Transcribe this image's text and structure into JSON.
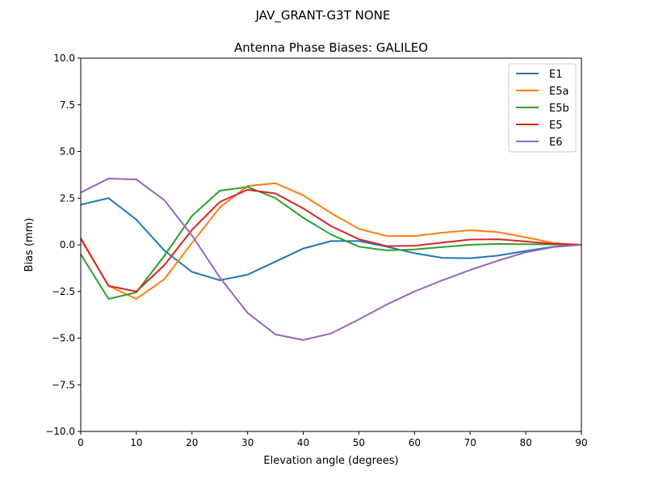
{
  "chart_data": {
    "type": "line",
    "suptitle": "JAV_GRANT-G3T   NONE",
    "title": "Antenna Phase Biases: GALILEO",
    "xlabel": "Elevation angle (degrees)",
    "ylabel": "Bias (mm)",
    "xlim": [
      0,
      90
    ],
    "ylim": [
      -10,
      10
    ],
    "xticks": [
      0,
      10,
      20,
      30,
      40,
      50,
      60,
      70,
      80,
      90
    ],
    "yticks": [
      -10.0,
      -7.5,
      -5.0,
      -2.5,
      0.0,
      2.5,
      5.0,
      7.5,
      10.0
    ],
    "ytick_labels": [
      "−10.0",
      "−7.5",
      "−5.0",
      "−2.5",
      "0.0",
      "2.5",
      "5.0",
      "7.5",
      "10.0"
    ],
    "legend_position": "top-right",
    "grid": false,
    "x": [
      0,
      5,
      10,
      15,
      20,
      25,
      30,
      35,
      40,
      45,
      50,
      55,
      60,
      65,
      70,
      75,
      80,
      85,
      90
    ],
    "series": [
      {
        "name": "E1",
        "color": "#1f77b4",
        "values": [
          2.15,
          2.5,
          1.35,
          -0.3,
          -1.45,
          -1.9,
          -1.6,
          -0.9,
          -0.2,
          0.2,
          0.2,
          -0.1,
          -0.45,
          -0.7,
          -0.72,
          -0.58,
          -0.33,
          -0.1,
          0
        ]
      },
      {
        "name": "E5a",
        "color": "#ff7f0e",
        "values": [
          0.3,
          -2.2,
          -2.9,
          -1.85,
          0.1,
          2.0,
          3.15,
          3.3,
          2.65,
          1.7,
          0.85,
          0.47,
          0.47,
          0.65,
          0.78,
          0.68,
          0.4,
          0.1,
          0
        ]
      },
      {
        "name": "E5b",
        "color": "#2ca02c",
        "values": [
          -0.5,
          -2.9,
          -2.55,
          -0.6,
          1.55,
          2.9,
          3.1,
          2.5,
          1.45,
          0.55,
          -0.1,
          -0.3,
          -0.25,
          -0.12,
          0.0,
          0.05,
          0.03,
          0.02,
          0
        ]
      },
      {
        "name": "E5",
        "color": "#d62728",
        "values": [
          0.35,
          -2.2,
          -2.5,
          -1.1,
          0.8,
          2.3,
          2.95,
          2.75,
          1.95,
          1.0,
          0.3,
          -0.07,
          -0.05,
          0.12,
          0.28,
          0.3,
          0.18,
          0.05,
          0
        ]
      },
      {
        "name": "E6",
        "color": "#9467bd",
        "values": [
          2.8,
          3.55,
          3.5,
          2.4,
          0.5,
          -1.75,
          -3.65,
          -4.8,
          -5.1,
          -4.75,
          -4.0,
          -3.2,
          -2.5,
          -1.9,
          -1.35,
          -0.85,
          -0.4,
          -0.12,
          0
        ]
      }
    ]
  }
}
